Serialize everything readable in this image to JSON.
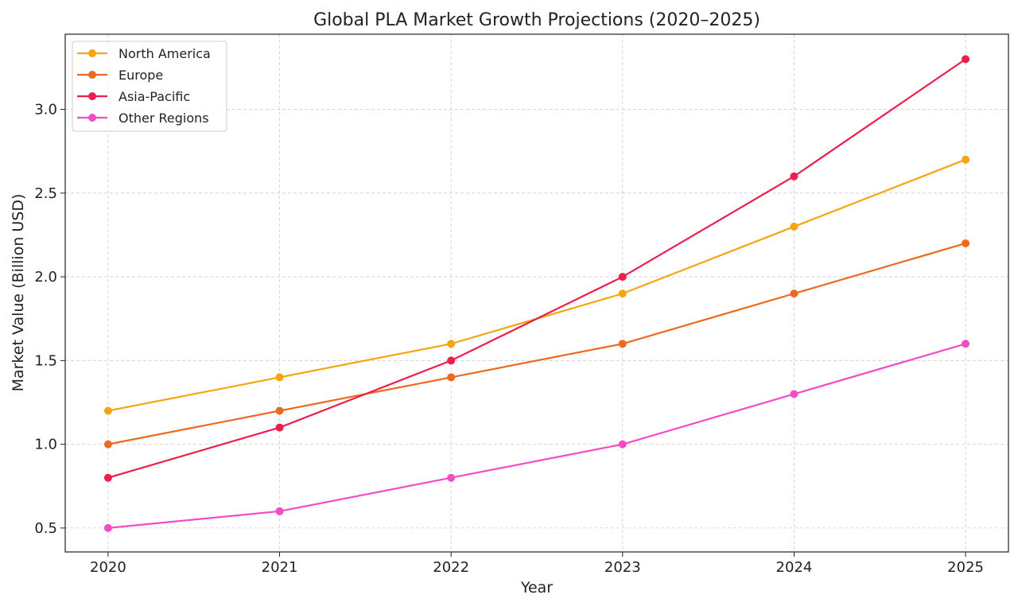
{
  "chart_data": {
    "type": "line",
    "title": "Global PLA Market Growth Projections (2020–2025)",
    "xlabel": "Year",
    "ylabel": "Market Value (Billion USD)",
    "x": [
      2020,
      2021,
      2022,
      2023,
      2024,
      2025
    ],
    "x_tick_labels": [
      "2020",
      "2021",
      "2022",
      "2023",
      "2024",
      "2025"
    ],
    "y_ticks": [
      0.5,
      1.0,
      1.5,
      2.0,
      2.5,
      3.0
    ],
    "y_tick_labels": [
      "0.5",
      "1.0",
      "1.5",
      "2.0",
      "2.5",
      "3.0"
    ],
    "xlim": [
      2019.75,
      2025.25
    ],
    "ylim": [
      0.357,
      3.449
    ],
    "grid": true,
    "legend_position": "top-left",
    "series": [
      {
        "name": "North America",
        "color": "#f5a511",
        "values": [
          1.2,
          1.4,
          1.6,
          1.9,
          2.3,
          2.7
        ]
      },
      {
        "name": "Europe",
        "color": "#ec6a1e",
        "values": [
          1.0,
          1.2,
          1.4,
          1.6,
          1.9,
          2.2
        ]
      },
      {
        "name": "Asia-Pacific",
        "color": "#ec1f4c",
        "values": [
          0.8,
          1.1,
          1.5,
          2.0,
          2.6,
          3.3
        ]
      },
      {
        "name": "Other Regions",
        "color": "#f24dc2",
        "values": [
          0.5,
          0.6,
          0.8,
          1.0,
          1.3,
          1.6
        ]
      }
    ]
  }
}
